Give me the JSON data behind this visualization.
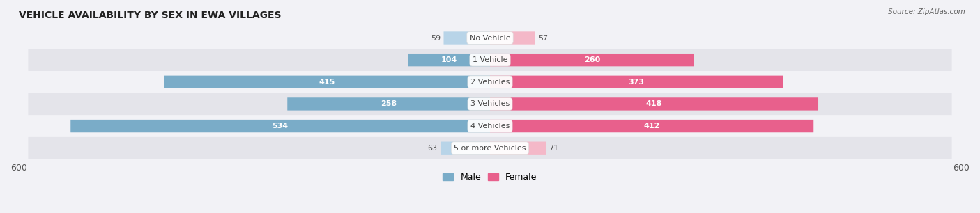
{
  "title": "VEHICLE AVAILABILITY BY SEX IN EWA VILLAGES",
  "source": "Source: ZipAtlas.com",
  "categories": [
    "No Vehicle",
    "1 Vehicle",
    "2 Vehicles",
    "3 Vehicles",
    "4 Vehicles",
    "5 or more Vehicles"
  ],
  "male_values": [
    59,
    104,
    415,
    258,
    534,
    63
  ],
  "female_values": [
    57,
    260,
    373,
    418,
    412,
    71
  ],
  "male_color_light": "#b8d4e8",
  "male_color_dark": "#7aacc8",
  "female_color_light": "#f4b8c8",
  "female_color_dark": "#e8608c",
  "row_bg_color_light": "#f2f2f6",
  "row_bg_color_dark": "#e4e4ea",
  "max_value": 600,
  "label_color_inside": "#ffffff",
  "label_color_outside": "#555555",
  "title_fontsize": 10,
  "label_fontsize": 8,
  "category_fontsize": 8,
  "axis_label_fontsize": 9,
  "legend_fontsize": 9,
  "inside_threshold": 80
}
